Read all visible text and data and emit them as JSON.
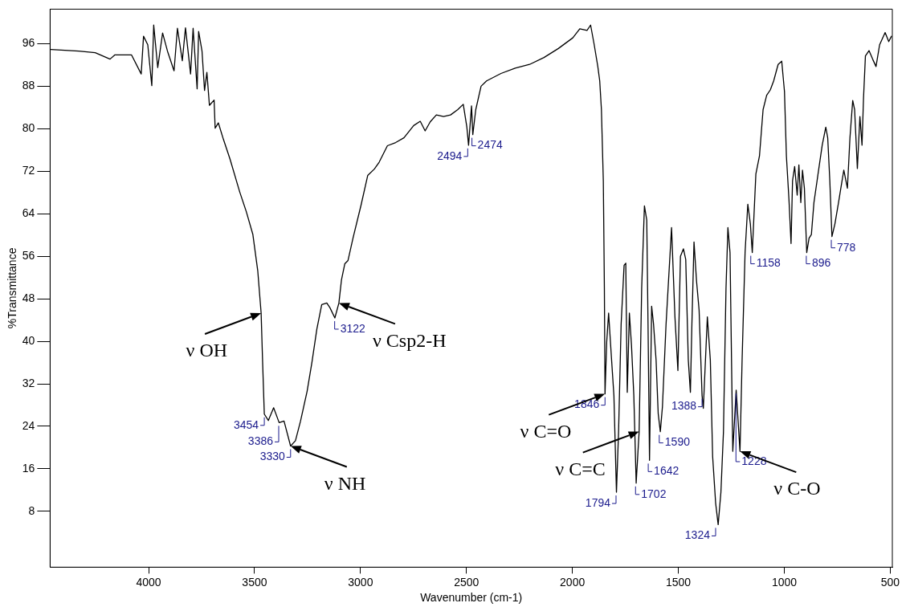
{
  "chart_data": {
    "type": "line",
    "xlabel": "Wavenumber (cm-1)",
    "ylabel": "%Transmittance",
    "xlim": [
      4465,
      490
    ],
    "ylim": [
      -2.5,
      102.5
    ],
    "xticks": [
      4000,
      3500,
      3000,
      2500,
      2000,
      1500,
      1000,
      500
    ],
    "yticks": [
      8,
      16,
      24,
      32,
      40,
      48,
      56,
      64,
      72,
      80,
      88,
      96
    ],
    "x": [
      4461,
      4330,
      4252,
      4182,
      4159,
      4081,
      4035,
      4024,
      4004,
      3985,
      3976,
      3957,
      3934,
      3911,
      3880,
      3864,
      3841,
      3826,
      3802,
      3790,
      3771,
      3764,
      3748,
      3736,
      3725,
      3713,
      3691,
      3686,
      3671,
      3647,
      3616,
      3570,
      3539,
      3508,
      3485,
      3469,
      3462,
      3454,
      3435,
      3410,
      3384,
      3361,
      3330,
      3307,
      3283,
      3252,
      3229,
      3206,
      3183,
      3159,
      3144,
      3121,
      3102,
      3090,
      3074,
      3059,
      3035,
      2997,
      2966,
      2935,
      2912,
      2873,
      2834,
      2795,
      2749,
      2718,
      2695,
      2671,
      2642,
      2608,
      2575,
      2541,
      2515,
      2498,
      2490,
      2476,
      2470,
      2456,
      2431,
      2405,
      2337,
      2270,
      2202,
      2134,
      2066,
      1998,
      1965,
      1931,
      1914,
      1897,
      1880,
      1871,
      1863,
      1854,
      1849,
      1846,
      1838,
      1829,
      1815,
      1804,
      1792,
      1782,
      1770,
      1756,
      1748,
      1741,
      1731,
      1721,
      1710,
      1699,
      1685,
      1673,
      1660,
      1649,
      1643,
      1636,
      1626,
      1617,
      1605,
      1595,
      1585,
      1575,
      1558,
      1532,
      1516,
      1502,
      1490,
      1476,
      1465,
      1453,
      1443,
      1436,
      1426,
      1414,
      1402,
      1388,
      1382,
      1363,
      1349,
      1338,
      1324,
      1312,
      1299,
      1287,
      1275,
      1266,
      1256,
      1243,
      1227,
      1209,
      1199,
      1185,
      1172,
      1160,
      1151,
      1134,
      1117,
      1100,
      1083,
      1066,
      1050,
      1029,
      1012,
      999,
      990,
      978,
      968,
      961,
      951,
      939,
      931,
      922,
      914,
      905,
      894,
      883,
      872,
      860,
      838,
      821,
      804,
      795,
      785,
      775,
      761,
      744,
      733,
      719,
      702,
      690,
      677,
      668,
      655,
      643,
      633,
      626,
      617,
      600,
      583,
      567,
      550,
      524,
      507,
      494
    ],
    "series": [
      {
        "color": "#000000",
        "values": [
          94.9,
          94.6,
          94.3,
          93.1,
          93.9,
          93.9,
          90.3,
          97.4,
          95.8,
          88.1,
          99.5,
          91.5,
          98.0,
          94.6,
          90.9,
          98.9,
          92.8,
          99.0,
          90.3,
          98.9,
          87.5,
          98.3,
          94.6,
          87.2,
          90.6,
          84.4,
          85.4,
          80.1,
          81.1,
          78.0,
          74.3,
          68.1,
          64.4,
          60.1,
          53.3,
          45.3,
          36.1,
          26.3,
          25.1,
          27.5,
          24.7,
          25.0,
          20.3,
          21.3,
          25.0,
          30.6,
          36.1,
          42.3,
          46.9,
          47.2,
          46.3,
          44.4,
          47.2,
          51.5,
          54.6,
          55.2,
          59.5,
          65.7,
          71.2,
          72.4,
          73.7,
          76.8,
          77.4,
          78.3,
          80.6,
          81.4,
          79.6,
          81.3,
          82.6,
          82.3,
          82.6,
          83.6,
          84.6,
          80.3,
          76.9,
          84.3,
          78.9,
          83.6,
          88.0,
          89.0,
          90.4,
          91.4,
          92.1,
          93.4,
          95.1,
          97.1,
          98.8,
          98.5,
          99.5,
          95.8,
          91.7,
          89.0,
          83.6,
          70.2,
          50.0,
          30.1,
          39.9,
          45.3,
          36.5,
          29.8,
          11.6,
          23.0,
          43.2,
          54.3,
          54.7,
          30.4,
          45.3,
          39.2,
          29.8,
          13.3,
          23.0,
          50.0,
          65.5,
          62.8,
          43.2,
          17.6,
          46.6,
          43.2,
          36.5,
          26.4,
          23.0,
          27.7,
          43.2,
          61.4,
          44.6,
          34.5,
          56.0,
          57.4,
          55.4,
          36.5,
          30.4,
          43.2,
          58.7,
          51.3,
          45.9,
          29.8,
          27.4,
          44.6,
          36.5,
          18.3,
          9.6,
          5.5,
          11.6,
          23.0,
          50.0,
          61.4,
          56.7,
          19.3,
          30.8,
          19.3,
          36.5,
          56.7,
          65.8,
          62.1,
          56.7,
          71.5,
          74.9,
          83.6,
          86.3,
          87.3,
          89.0,
          92.1,
          92.7,
          87.0,
          74.9,
          66.8,
          58.4,
          70.2,
          72.9,
          67.5,
          73.2,
          66.1,
          72.2,
          68.8,
          56.7,
          59.4,
          60.1,
          66.1,
          72.2,
          76.9,
          80.3,
          78.3,
          70.2,
          59.7,
          62.1,
          66.1,
          68.8,
          72.2,
          68.8,
          78.3,
          85.3,
          83.6,
          72.5,
          82.3,
          76.9,
          85.7,
          93.7,
          94.7,
          93.1,
          91.7,
          95.8,
          98.1,
          96.4,
          97.4
        ]
      }
    ],
    "annotations": [
      {
        "text": "ν OH",
        "x": 3469,
        "y": 45.3
      },
      {
        "text": "ν NH",
        "x": 3330,
        "y": 20.3
      },
      {
        "text": "ν Csp2-H",
        "x": 3102,
        "y": 47.2
      },
      {
        "text": "ν C=O",
        "x": 1846,
        "y": 30.1
      },
      {
        "text": "ν C=C",
        "x": 1685,
        "y": 23.0
      },
      {
        "text": "ν C-O",
        "x": 1209,
        "y": 19.3
      },
      {
        "text": "3454",
        "x": 3454,
        "y": 26.3
      },
      {
        "text": "3386",
        "x": 3386,
        "y": 24.7
      },
      {
        "text": "3330",
        "x": 3330,
        "y": 20.3
      },
      {
        "text": "3122",
        "x": 3122,
        "y": 44.4
      },
      {
        "text": "2494",
        "x": 2494,
        "y": 76.9
      },
      {
        "text": "2474",
        "x": 2474,
        "y": 78.9
      },
      {
        "text": "1846",
        "x": 1846,
        "y": 30.1
      },
      {
        "text": "1794",
        "x": 1794,
        "y": 11.6
      },
      {
        "text": "1702",
        "x": 1702,
        "y": 13.3
      },
      {
        "text": "1642",
        "x": 1642,
        "y": 17.6
      },
      {
        "text": "1590",
        "x": 1590,
        "y": 23.0
      },
      {
        "text": "1388",
        "x": 1388,
        "y": 29.8
      },
      {
        "text": "1324",
        "x": 1324,
        "y": 5.5
      },
      {
        "text": "1228",
        "x": 1228,
        "y": 30.8
      },
      {
        "text": "1158",
        "x": 1158,
        "y": 56.7
      },
      {
        "text": "896",
        "x": 896,
        "y": 56.7
      },
      {
        "text": "778",
        "x": 778,
        "y": 59.7
      }
    ]
  }
}
